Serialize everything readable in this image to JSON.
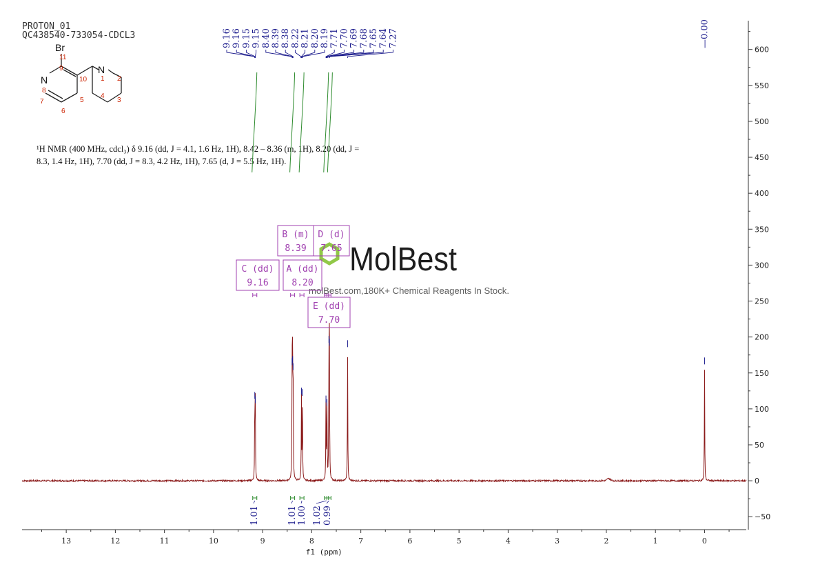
{
  "header": {
    "line1": "PROTON_01",
    "line2": "QC438540-733054-CDCL3"
  },
  "nmr_text": {
    "line1": "¹H NMR (400 MHz, cdcl₃) δ 9.16 (dd, J = 4.1, 1.6 Hz, 1H), 8.42 – 8.36 (m, 1H), 8.20 (dd, J =",
    "line2": "8.3, 1.4 Hz, 1H), 7.70 (dd, J = 8.3, 4.2 Hz, 1H), 7.65 (d, J = 5.5 Hz, 1H)."
  },
  "structure": {
    "bromo_label": "Br",
    "atoms": [
      {
        "symbol": "N",
        "num": "1"
      },
      {
        "symbol": "",
        "num": "2"
      },
      {
        "symbol": "",
        "num": "3"
      },
      {
        "symbol": "",
        "num": "4"
      },
      {
        "symbol": "",
        "num": "5"
      },
      {
        "symbol": "",
        "num": "6"
      },
      {
        "symbol": "",
        "num": "7"
      },
      {
        "symbol": "N",
        "num": "8"
      },
      {
        "symbol": "",
        "num": "9"
      },
      {
        "symbol": "",
        "num": "10"
      },
      {
        "symbol": "",
        "num": "11"
      }
    ]
  },
  "watermark": {
    "brand": "MolBest",
    "tagline": "molBest.com,180K+ Chemical Reagents In Stock."
  },
  "colors": {
    "spectrum": "#8b1a1a",
    "peak_labels": "#1a1a8c",
    "integral": "#2e8b2e",
    "multiplet_box": "#a040b0",
    "atom_numbers": "#cc2200",
    "watermark": "#7dc242"
  },
  "chart_data": {
    "type": "line",
    "xlabel": "f1 (ppm)",
    "xlim": [
      13.9,
      -0.85
    ],
    "ylim": [
      -68,
      640
    ],
    "x_ticks": [
      13,
      12,
      11,
      10,
      9,
      8,
      7,
      6,
      5,
      4,
      3,
      2,
      1,
      0
    ],
    "y_ticks": [
      -50,
      0,
      50,
      100,
      150,
      200,
      250,
      300,
      350,
      400,
      450,
      500,
      550,
      600
    ],
    "peaks": [
      {
        "ppm": 9.16,
        "height": 112
      },
      {
        "ppm": 9.15,
        "height": 106
      },
      {
        "ppm": 8.4,
        "height": 159
      },
      {
        "ppm": 8.39,
        "height": 162
      },
      {
        "ppm": 8.38,
        "height": 152
      },
      {
        "ppm": 8.21,
        "height": 118
      },
      {
        "ppm": 8.19,
        "height": 116
      },
      {
        "ppm": 7.71,
        "height": 107
      },
      {
        "ppm": 7.69,
        "height": 102
      },
      {
        "ppm": 7.65,
        "height": 190
      },
      {
        "ppm": 7.64,
        "height": 186
      },
      {
        "ppm": 7.27,
        "height": 184
      },
      {
        "ppm": 0.0,
        "height": 160
      }
    ],
    "peak_labels": [
      "9.16",
      "9.16",
      "9.15",
      "9.15",
      "8.40",
      "8.39",
      "8.38",
      "8.22",
      "8.21",
      "8.20",
      "8.19",
      "7.71",
      "7.70",
      "7.69",
      "7.68",
      "7.65",
      "7.64",
      "7.27"
    ],
    "tms_label": "0.00",
    "multiplets": [
      {
        "label": "C (dd)",
        "shift": "9.16",
        "ppm": 9.16
      },
      {
        "label": "B (m)",
        "shift": "8.39",
        "ppm": 8.39
      },
      {
        "label": "A (dd)",
        "shift": "8.20",
        "ppm": 8.2
      },
      {
        "label": "D (d)",
        "shift": "7.65",
        "ppm": 7.65
      },
      {
        "label": "E (dd)",
        "shift": "7.70",
        "ppm": 7.7
      }
    ],
    "integrals": [
      {
        "ppm": 9.16,
        "value": "1.01"
      },
      {
        "ppm": 8.39,
        "value": "1.01"
      },
      {
        "ppm": 8.2,
        "value": "1.00"
      },
      {
        "ppm": 7.7,
        "value": "1.02"
      },
      {
        "ppm": 7.65,
        "value": "0.99"
      }
    ]
  }
}
